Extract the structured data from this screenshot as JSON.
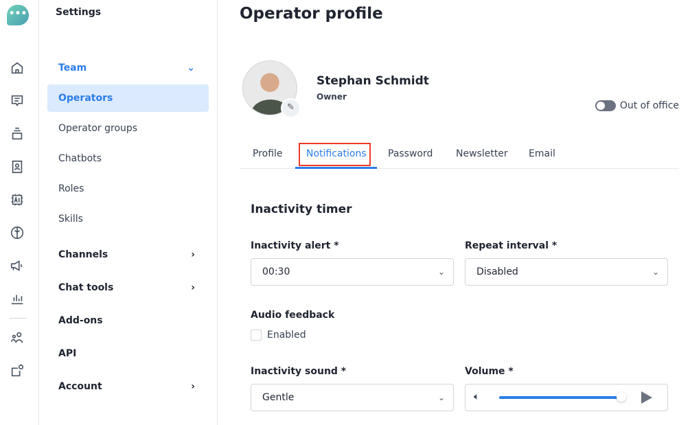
{
  "rail": {
    "items": [
      "home-icon",
      "chat-icon",
      "inbox-icon",
      "contacts-icon",
      "ai-icon",
      "brain-icon",
      "megaphone-icon",
      "stats-icon",
      "team-icon",
      "integrations-icon"
    ]
  },
  "sidebar": {
    "title": "Settings",
    "items": [
      {
        "label": "Team",
        "chevron": "⌄"
      },
      {
        "label": "Operators"
      },
      {
        "label": "Operator groups"
      },
      {
        "label": "Chatbots"
      },
      {
        "label": "Roles"
      },
      {
        "label": "Skills"
      },
      {
        "label": "Channels",
        "chevron": "›"
      },
      {
        "label": "Chat tools",
        "chevron": "›"
      },
      {
        "label": "Add-ons"
      },
      {
        "label": "API"
      },
      {
        "label": "Account",
        "chevron": "›"
      }
    ]
  },
  "main": {
    "title": "Operator profile",
    "profile": {
      "name": "Stephan Schmidt",
      "role": "Owner",
      "out_of_office": "Out of office",
      "out_of_office_on": false
    },
    "tabs": [
      {
        "label": "Profile"
      },
      {
        "label": "Notifications",
        "active": true
      },
      {
        "label": "Password"
      },
      {
        "label": "Newsletter"
      },
      {
        "label": "Email"
      }
    ],
    "section": "Inactivity timer",
    "inactivity_alert": {
      "label": "Inactivity alert *",
      "value": "00:30"
    },
    "repeat_interval": {
      "label": "Repeat interval *",
      "value": "Disabled"
    },
    "audio_feedback": {
      "label": "Audio feedback",
      "checkbox": "Enabled",
      "checked": false
    },
    "inactivity_sound": {
      "label": "Inactivity sound *",
      "value": "Gentle"
    },
    "volume": {
      "label": "Volume *",
      "percent": 98
    }
  },
  "colors": {
    "accent": "#2b7de9",
    "highlight": "#ee3b26"
  }
}
